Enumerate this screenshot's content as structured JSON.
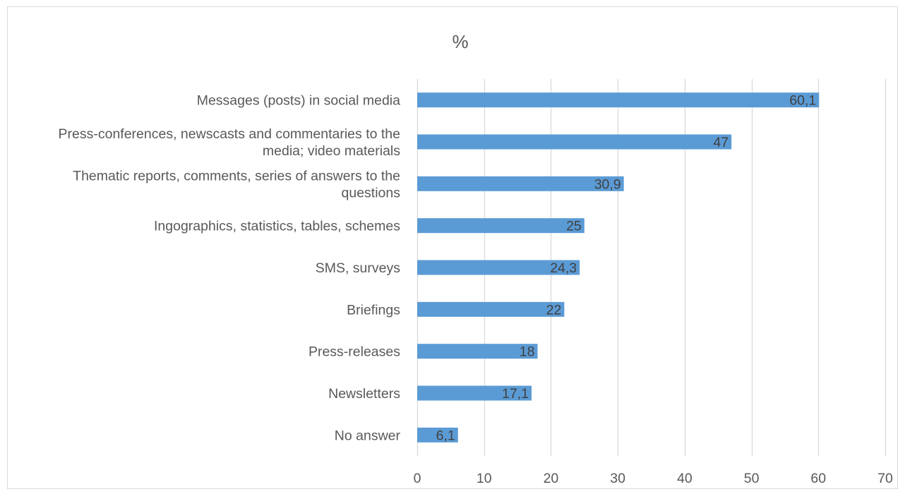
{
  "chart_data": {
    "type": "bar",
    "orientation": "horizontal",
    "title": "%",
    "categories": [
      "Messages (posts) in social media",
      "Press-conferences, newscasts and commentaries to the media; video materials",
      "Thematic reports, comments, series of answers to the questions",
      "Ingographics, statistics, tables, schemes",
      "SMS, surveys",
      "Briefings",
      "Press-releases",
      "Newsletters",
      "No answer"
    ],
    "category_lines": [
      [
        "Messages (posts) in social media"
      ],
      [
        "Press-conferences, newscasts and commentaries to the",
        "media; video materials"
      ],
      [
        "Thematic reports, comments, series of answers to the",
        "questions"
      ],
      [
        "Ingographics, statistics, tables, schemes"
      ],
      [
        "SMS, surveys"
      ],
      [
        "Briefings"
      ],
      [
        "Press-releases"
      ],
      [
        "Newsletters"
      ],
      [
        "No answer"
      ]
    ],
    "values": [
      60.1,
      47,
      30.9,
      25,
      24.3,
      22,
      18,
      17.1,
      6.1
    ],
    "value_labels": [
      "60,1",
      "47",
      "30,9",
      "25",
      "24,3",
      "22",
      "18",
      "17,1",
      "6,1"
    ],
    "xlim": [
      0,
      70
    ],
    "xticks": [
      0,
      10,
      20,
      30,
      40,
      50,
      60,
      70
    ],
    "xtick_labels": [
      "0",
      "10",
      "20",
      "30",
      "40",
      "50",
      "60",
      "70"
    ],
    "grid": true,
    "bar_color": "#5b9bd5",
    "grid_color": "#d9d9d9",
    "text_color": "#595959",
    "label_color": "#404040"
  }
}
